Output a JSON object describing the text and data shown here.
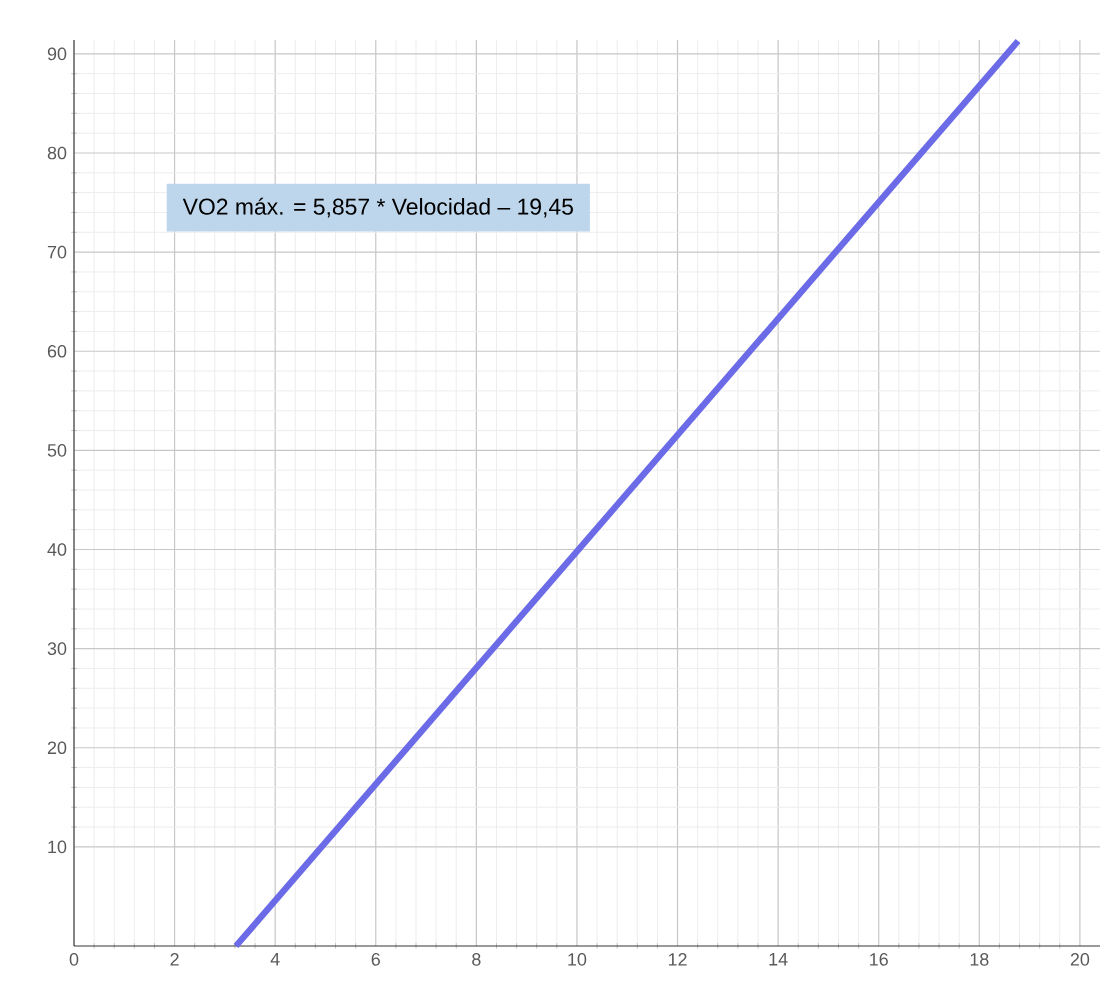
{
  "chart_data": {
    "type": "line",
    "x": [
      3.22,
      18.77
    ],
    "series": [
      {
        "color": "#6b6be8",
        "values": [
          0,
          91.3
        ]
      }
    ],
    "xlim": [
      0,
      20.4
    ],
    "ylim": [
      0,
      91.4
    ],
    "xticks": [
      0,
      2,
      4,
      6,
      8,
      10,
      12,
      14,
      16,
      18,
      20
    ],
    "yticks": [
      10,
      20,
      30,
      40,
      50,
      60,
      70,
      80,
      90
    ],
    "grid": true,
    "marker": "none",
    "line_style": "solid",
    "annotations": [
      "VO2 máx. = 5,857 * Velocidad – 19,45"
    ]
  }
}
